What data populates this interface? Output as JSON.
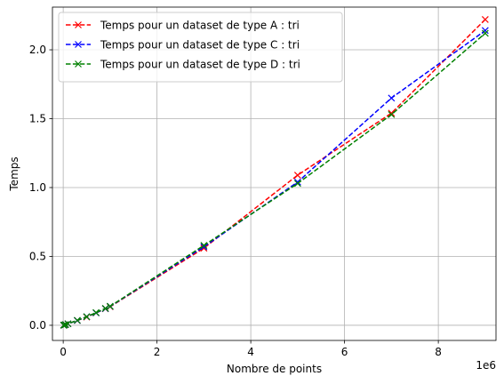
{
  "chart_data": {
    "type": "line",
    "title": "",
    "xlabel": "Nombre de points",
    "ylabel": "Temps",
    "x_offset_label": "1e6",
    "xlim": [
      -230000,
      9230000
    ],
    "ylim": [
      -0.11,
      2.31
    ],
    "x_ticks": [
      0,
      2000000,
      4000000,
      6000000,
      8000000
    ],
    "x_tick_labels": [
      "0",
      "2",
      "4",
      "6",
      "8"
    ],
    "y_ticks": [
      0.0,
      0.5,
      1.0,
      1.5,
      2.0
    ],
    "y_tick_labels": [
      "0.0",
      "0.5",
      "1.0",
      "1.5",
      "2.0"
    ],
    "grid": true,
    "legend_position": "top-left",
    "series": [
      {
        "name": "Temps pour un dataset de type A : tri",
        "color": "#ff0000",
        "line_style": "dashed",
        "marker": "x",
        "x": [
          10000,
          20000,
          50000,
          100000,
          300000,
          500000,
          700000,
          900000,
          1000000,
          3000000,
          5000000,
          7000000,
          9000000
        ],
        "y": [
          0.001,
          0.002,
          0.005,
          0.011,
          0.035,
          0.06,
          0.09,
          0.12,
          0.135,
          0.56,
          1.09,
          1.54,
          2.22
        ]
      },
      {
        "name": "Temps pour un dataset de type C : tri",
        "color": "#0000ff",
        "line_style": "dashed",
        "marker": "x",
        "x": [
          10000,
          20000,
          50000,
          100000,
          300000,
          500000,
          700000,
          900000,
          1000000,
          3000000,
          5000000,
          7000000,
          9000000
        ],
        "y": [
          0.001,
          0.002,
          0.005,
          0.011,
          0.035,
          0.062,
          0.09,
          0.121,
          0.137,
          0.57,
          1.04,
          1.65,
          2.14
        ]
      },
      {
        "name": "Temps pour un dataset de type D : tri",
        "color": "#008000",
        "line_style": "dashed",
        "marker": "x",
        "x": [
          10000,
          20000,
          50000,
          100000,
          300000,
          500000,
          700000,
          900000,
          1000000,
          3000000,
          5000000,
          7000000,
          9000000
        ],
        "y": [
          0.001,
          0.002,
          0.005,
          0.011,
          0.036,
          0.062,
          0.092,
          0.123,
          0.138,
          0.58,
          1.03,
          1.53,
          2.12
        ]
      }
    ]
  }
}
